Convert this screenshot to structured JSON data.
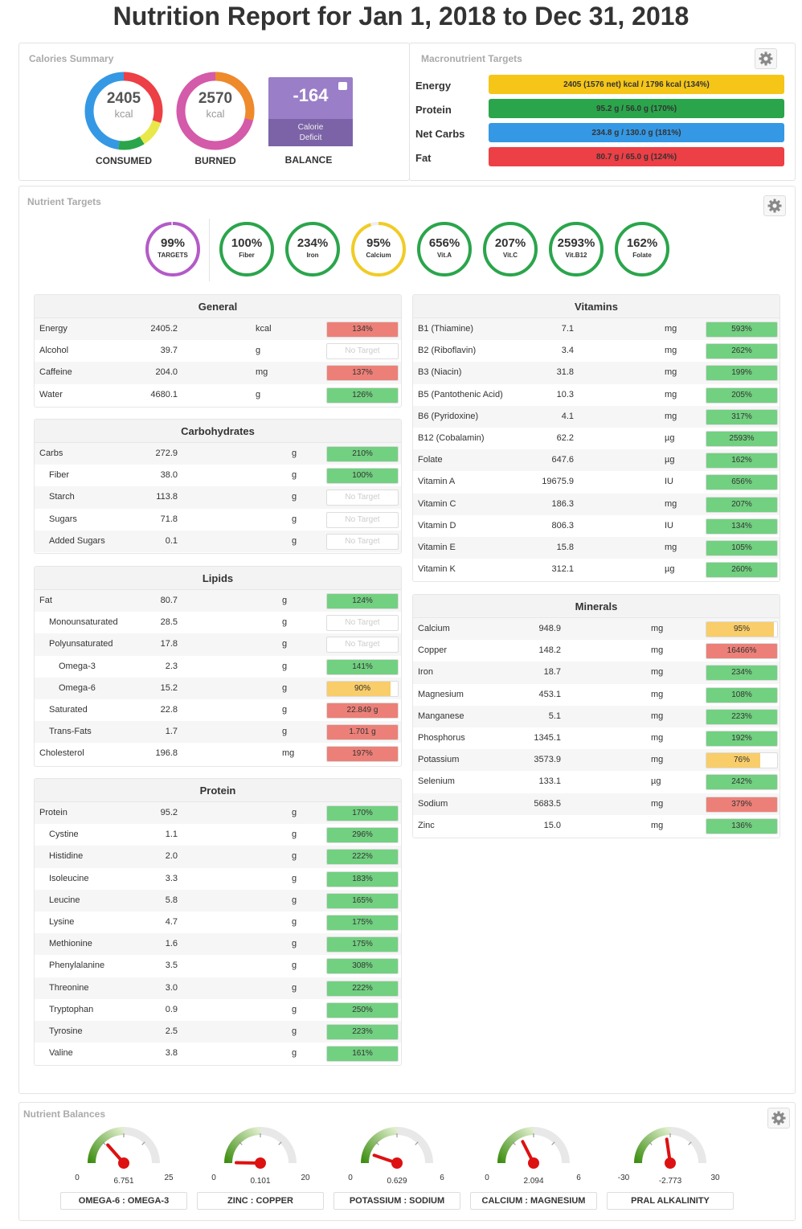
{
  "title": "Nutrition Report for Jan 1, 2018 to Dec 31, 2018",
  "calories_summary": {
    "title": "Calories Summary",
    "consumed": {
      "value": "2405",
      "unit": "kcal",
      "caption": "CONSUMED"
    },
    "burned": {
      "value": "2570",
      "unit": "kcal",
      "caption": "BURNED"
    },
    "balance": {
      "value": "-164",
      "sub": "Calorie Deficit",
      "caption": "BALANCE"
    }
  },
  "macro_targets": {
    "title": "Macronutrient Targets",
    "rows": [
      {
        "label": "Energy",
        "text": "2405 (1576 net) kcal / 1796 kcal (134%)",
        "color": "#f5c518"
      },
      {
        "label": "Protein",
        "text": "95.2 g / 56.0 g (170%)",
        "color": "#2aa54b"
      },
      {
        "label": "Net Carbs",
        "text": "234.8 g / 130.0 g (181%)",
        "color": "#3598e4"
      },
      {
        "label": "Fat",
        "text": "80.7 g / 65.0 g (124%)",
        "color": "#ec3f46"
      }
    ]
  },
  "nutrient_targets": {
    "title": "Nutrient Targets",
    "rings": [
      {
        "pct": "99%",
        "label": "TARGETS",
        "color": "#b45ac8",
        "fill": 0.99
      },
      {
        "pct": "100%",
        "label": "Fiber",
        "color": "#2aa54b",
        "fill": 1
      },
      {
        "pct": "234%",
        "label": "Iron",
        "color": "#2aa54b",
        "fill": 1
      },
      {
        "pct": "95%",
        "label": "Calcium",
        "color": "#f0cc25",
        "fill": 0.95
      },
      {
        "pct": "656%",
        "label": "Vit.A",
        "color": "#2aa54b",
        "fill": 1
      },
      {
        "pct": "207%",
        "label": "Vit.C",
        "color": "#2aa54b",
        "fill": 1
      },
      {
        "pct": "2593%",
        "label": "Vit.B12",
        "color": "#2aa54b",
        "fill": 1
      },
      {
        "pct": "162%",
        "label": "Folate",
        "color": "#2aa54b",
        "fill": 1
      }
    ]
  },
  "status_colors": {
    "green": "#72d081",
    "red": "#ec8078",
    "yellow": "#f8cd6a"
  },
  "tables": {
    "general": {
      "title": "General",
      "rows": [
        {
          "name": "Energy",
          "value": "2405.2",
          "unit": "kcal",
          "pct": "134%",
          "status": "red",
          "fill": 1
        },
        {
          "name": "Alcohol",
          "value": "39.7",
          "unit": "g",
          "pct": "No Target",
          "status": "none",
          "fill": 0
        },
        {
          "name": "Caffeine",
          "value": "204.0",
          "unit": "mg",
          "pct": "137%",
          "status": "red",
          "fill": 1
        },
        {
          "name": "Water",
          "value": "4680.1",
          "unit": "g",
          "pct": "126%",
          "status": "green",
          "fill": 1
        }
      ]
    },
    "carbohydrates": {
      "title": "Carbohydrates",
      "rows": [
        {
          "name": "Carbs",
          "value": "272.9",
          "unit": "g",
          "pct": "210%",
          "status": "green",
          "fill": 1,
          "indent": 0
        },
        {
          "name": "Fiber",
          "value": "38.0",
          "unit": "g",
          "pct": "100%",
          "status": "green",
          "fill": 1,
          "indent": 1
        },
        {
          "name": "Starch",
          "value": "113.8",
          "unit": "g",
          "pct": "No Target",
          "status": "none",
          "fill": 0,
          "indent": 1
        },
        {
          "name": "Sugars",
          "value": "71.8",
          "unit": "g",
          "pct": "No Target",
          "status": "none",
          "fill": 0,
          "indent": 1
        },
        {
          "name": "Added Sugars",
          "value": "0.1",
          "unit": "g",
          "pct": "No Target",
          "status": "none",
          "fill": 0,
          "indent": 1
        }
      ]
    },
    "lipids": {
      "title": "Lipids",
      "rows": [
        {
          "name": "Fat",
          "value": "80.7",
          "unit": "g",
          "pct": "124%",
          "status": "green",
          "fill": 1,
          "indent": 0
        },
        {
          "name": "Monounsaturated",
          "value": "28.5",
          "unit": "g",
          "pct": "No Target",
          "status": "none",
          "fill": 0,
          "indent": 1
        },
        {
          "name": "Polyunsaturated",
          "value": "17.8",
          "unit": "g",
          "pct": "No Target",
          "status": "none",
          "fill": 0,
          "indent": 1
        },
        {
          "name": "Omega-3",
          "value": "2.3",
          "unit": "g",
          "pct": "141%",
          "status": "green",
          "fill": 1,
          "indent": 2
        },
        {
          "name": "Omega-6",
          "value": "15.2",
          "unit": "g",
          "pct": "90%",
          "status": "yellow",
          "fill": 0.9,
          "indent": 2
        },
        {
          "name": "Saturated",
          "value": "22.8",
          "unit": "g",
          "pct": "22.849 g",
          "status": "red",
          "fill": 1,
          "indent": 1
        },
        {
          "name": "Trans-Fats",
          "value": "1.7",
          "unit": "g",
          "pct": "1.701 g",
          "status": "red",
          "fill": 1,
          "indent": 1
        },
        {
          "name": "Cholesterol",
          "value": "196.8",
          "unit": "mg",
          "pct": "197%",
          "status": "red",
          "fill": 1,
          "indent": 0
        }
      ]
    },
    "protein": {
      "title": "Protein",
      "rows": [
        {
          "name": "Protein",
          "value": "95.2",
          "unit": "g",
          "pct": "170%",
          "status": "green",
          "fill": 1,
          "indent": 0
        },
        {
          "name": "Cystine",
          "value": "1.1",
          "unit": "g",
          "pct": "296%",
          "status": "green",
          "fill": 1,
          "indent": 1
        },
        {
          "name": "Histidine",
          "value": "2.0",
          "unit": "g",
          "pct": "222%",
          "status": "green",
          "fill": 1,
          "indent": 1
        },
        {
          "name": "Isoleucine",
          "value": "3.3",
          "unit": "g",
          "pct": "183%",
          "status": "green",
          "fill": 1,
          "indent": 1
        },
        {
          "name": "Leucine",
          "value": "5.8",
          "unit": "g",
          "pct": "165%",
          "status": "green",
          "fill": 1,
          "indent": 1
        },
        {
          "name": "Lysine",
          "value": "4.7",
          "unit": "g",
          "pct": "175%",
          "status": "green",
          "fill": 1,
          "indent": 1
        },
        {
          "name": "Methionine",
          "value": "1.6",
          "unit": "g",
          "pct": "175%",
          "status": "green",
          "fill": 1,
          "indent": 1
        },
        {
          "name": "Phenylalanine",
          "value": "3.5",
          "unit": "g",
          "pct": "308%",
          "status": "green",
          "fill": 1,
          "indent": 1
        },
        {
          "name": "Threonine",
          "value": "3.0",
          "unit": "g",
          "pct": "222%",
          "status": "green",
          "fill": 1,
          "indent": 1
        },
        {
          "name": "Tryptophan",
          "value": "0.9",
          "unit": "g",
          "pct": "250%",
          "status": "green",
          "fill": 1,
          "indent": 1
        },
        {
          "name": "Tyrosine",
          "value": "2.5",
          "unit": "g",
          "pct": "223%",
          "status": "green",
          "fill": 1,
          "indent": 1
        },
        {
          "name": "Valine",
          "value": "3.8",
          "unit": "g",
          "pct": "161%",
          "status": "green",
          "fill": 1,
          "indent": 1
        }
      ]
    },
    "vitamins": {
      "title": "Vitamins",
      "rows": [
        {
          "name": "B1 (Thiamine)",
          "value": "7.1",
          "unit": "mg",
          "pct": "593%",
          "status": "green",
          "fill": 1
        },
        {
          "name": "B2 (Riboflavin)",
          "value": "3.4",
          "unit": "mg",
          "pct": "262%",
          "status": "green",
          "fill": 1
        },
        {
          "name": "B3 (Niacin)",
          "value": "31.8",
          "unit": "mg",
          "pct": "199%",
          "status": "green",
          "fill": 1
        },
        {
          "name": "B5 (Pantothenic Acid)",
          "value": "10.3",
          "unit": "mg",
          "pct": "205%",
          "status": "green",
          "fill": 1
        },
        {
          "name": "B6 (Pyridoxine)",
          "value": "4.1",
          "unit": "mg",
          "pct": "317%",
          "status": "green",
          "fill": 1
        },
        {
          "name": "B12 (Cobalamin)",
          "value": "62.2",
          "unit": "µg",
          "pct": "2593%",
          "status": "green",
          "fill": 1
        },
        {
          "name": "Folate",
          "value": "647.6",
          "unit": "µg",
          "pct": "162%",
          "status": "green",
          "fill": 1
        },
        {
          "name": "Vitamin A",
          "value": "19675.9",
          "unit": "IU",
          "pct": "656%",
          "status": "green",
          "fill": 1
        },
        {
          "name": "Vitamin C",
          "value": "186.3",
          "unit": "mg",
          "pct": "207%",
          "status": "green",
          "fill": 1
        },
        {
          "name": "Vitamin D",
          "value": "806.3",
          "unit": "IU",
          "pct": "134%",
          "status": "green",
          "fill": 1
        },
        {
          "name": "Vitamin E",
          "value": "15.8",
          "unit": "mg",
          "pct": "105%",
          "status": "green",
          "fill": 1
        },
        {
          "name": "Vitamin K",
          "value": "312.1",
          "unit": "µg",
          "pct": "260%",
          "status": "green",
          "fill": 1
        }
      ]
    },
    "minerals": {
      "title": "Minerals",
      "rows": [
        {
          "name": "Calcium",
          "value": "948.9",
          "unit": "mg",
          "pct": "95%",
          "status": "yellow",
          "fill": 0.95
        },
        {
          "name": "Copper",
          "value": "148.2",
          "unit": "mg",
          "pct": "16466%",
          "status": "red",
          "fill": 1
        },
        {
          "name": "Iron",
          "value": "18.7",
          "unit": "mg",
          "pct": "234%",
          "status": "green",
          "fill": 1
        },
        {
          "name": "Magnesium",
          "value": "453.1",
          "unit": "mg",
          "pct": "108%",
          "status": "green",
          "fill": 1
        },
        {
          "name": "Manganese",
          "value": "5.1",
          "unit": "mg",
          "pct": "223%",
          "status": "green",
          "fill": 1
        },
        {
          "name": "Phosphorus",
          "value": "1345.1",
          "unit": "mg",
          "pct": "192%",
          "status": "green",
          "fill": 1
        },
        {
          "name": "Potassium",
          "value": "3573.9",
          "unit": "mg",
          "pct": "76%",
          "status": "yellow",
          "fill": 0.76
        },
        {
          "name": "Selenium",
          "value": "133.1",
          "unit": "µg",
          "pct": "242%",
          "status": "green",
          "fill": 1
        },
        {
          "name": "Sodium",
          "value": "5683.5",
          "unit": "mg",
          "pct": "379%",
          "status": "red",
          "fill": 1
        },
        {
          "name": "Zinc",
          "value": "15.0",
          "unit": "mg",
          "pct": "136%",
          "status": "green",
          "fill": 1
        }
      ]
    }
  },
  "balances": {
    "title": "Nutrient Balances",
    "gauges": [
      {
        "label": "OMEGA-6 : OMEGA-3",
        "min": "0",
        "max": "25",
        "value": "6.751",
        "level": 0.27
      },
      {
        "label": "ZINC : COPPER",
        "min": "0",
        "max": "20",
        "value": "0.101",
        "level": 0.005
      },
      {
        "label": "POTASSIUM : SODIUM",
        "min": "0",
        "max": "6",
        "value": "0.629",
        "level": 0.105
      },
      {
        "label": "CALCIUM : MAGNESIUM",
        "min": "0",
        "max": "6",
        "value": "2.094",
        "level": 0.35
      },
      {
        "label": "PRAL ALKALINITY",
        "min": "-30",
        "max": "30",
        "value": "-2.773",
        "level": 0.454
      }
    ]
  }
}
